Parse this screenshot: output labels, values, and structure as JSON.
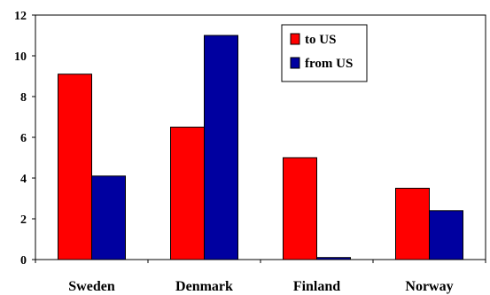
{
  "chart_data": {
    "type": "bar",
    "title": "",
    "xlabel": "",
    "ylabel": "",
    "categories": [
      "Sweden",
      "Denmark",
      "Finland",
      "Norway"
    ],
    "series": [
      {
        "name": "to US",
        "values": [
          9.1,
          6.5,
          5.0,
          3.5
        ],
        "color": "#ff0000"
      },
      {
        "name": "from US",
        "values": [
          4.1,
          11.0,
          0.1,
          2.4
        ],
        "color": "#0000a0"
      }
    ],
    "ylim": [
      0,
      12
    ],
    "yticks": [
      0,
      2,
      4,
      6,
      8,
      10,
      12
    ],
    "grid": false,
    "legend_position": "top-right"
  }
}
